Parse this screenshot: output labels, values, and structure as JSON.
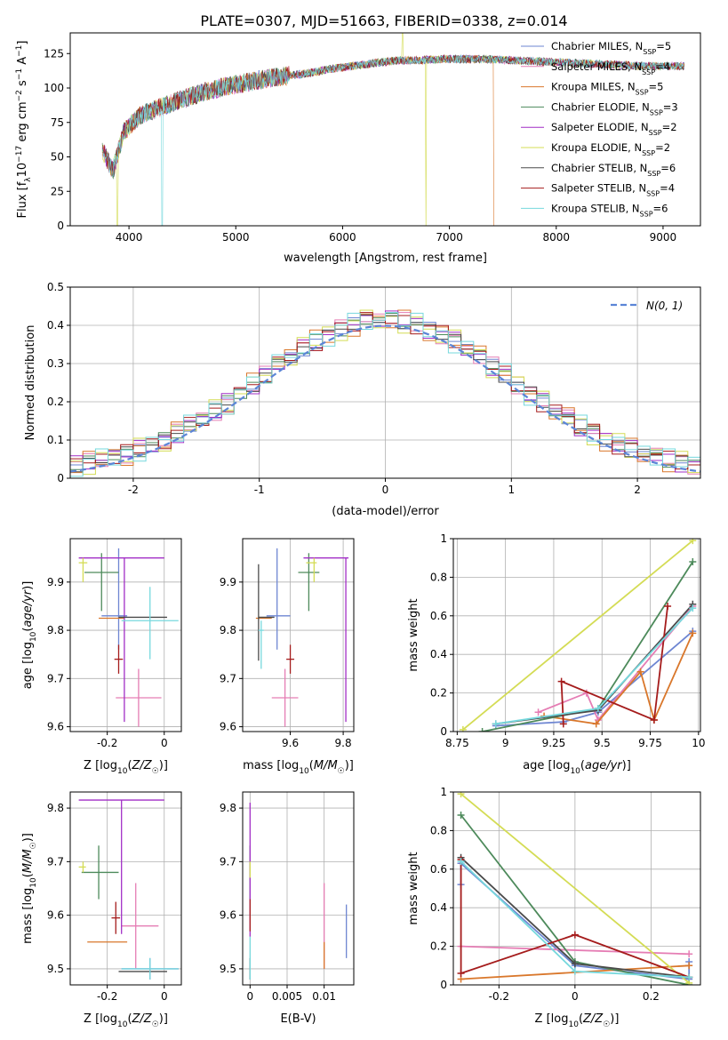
{
  "figure": {
    "title": "PLATE=0307, MJD=51663, FIBERID=0338, z=0.014"
  },
  "models": [
    {
      "name": "Chabrier MILES, N$_{SSP}$=5",
      "label_main": "Chabrier MILES, N",
      "label_sub": "SSP",
      "label_end": "=5",
      "color": "#6e86d2"
    },
    {
      "name": "Salpeter MILES, N$_{SSP}$=4",
      "label_main": "Salpeter MILES, N",
      "label_sub": "SSP",
      "label_end": "=4",
      "color": "#e57db4"
    },
    {
      "name": "Kroupa MILES, N$_{SSP}$=5",
      "label_main": "Kroupa MILES, N",
      "label_sub": "SSP",
      "label_end": "=5",
      "color": "#d9772b"
    },
    {
      "name": "Chabrier ELODIE, N$_{SSP}$=3",
      "label_main": "Chabrier ELODIE, N",
      "label_sub": "SSP",
      "label_end": "=3",
      "color": "#4d8a5b"
    },
    {
      "name": "Salpeter ELODIE, N$_{SSP}$=2",
      "label_main": "Salpeter ELODIE, N",
      "label_sub": "SSP",
      "label_end": "=2",
      "color": "#a22fc6"
    },
    {
      "name": "Kroupa ELODIE, N$_{SSP}$=2",
      "label_main": "Kroupa ELODIE, N",
      "label_sub": "SSP",
      "label_end": "=2",
      "color": "#d4dc55"
    },
    {
      "name": "Chabrier STELIB, N$_{SSP}$=6",
      "label_main": "Chabrier STELIB, N",
      "label_sub": "SSP",
      "label_end": "=6",
      "color": "#4a4a4a"
    },
    {
      "name": "Salpeter STELIB, N$_{SSP}$=4",
      "label_main": "Salpeter STELIB, N",
      "label_sub": "SSP",
      "label_end": "=4",
      "color": "#a51c1c"
    },
    {
      "name": "Kroupa STELIB, N$_{SSP}$=6",
      "label_main": "Kroupa STELIB, N",
      "label_sub": "SSP",
      "label_end": "=6",
      "color": "#76d8dd"
    }
  ],
  "chart_data": [
    {
      "id": "spectrum",
      "type": "line",
      "xlabel": "wavelength [Angstrom, rest frame]",
      "ylabel": "Flux [f_λ 10^-17 erg cm^-2 s^-1 A^-1]",
      "xlim": [
        3450,
        9350
      ],
      "ylim": [
        0,
        140
      ],
      "xticks": [
        4000,
        5000,
        6000,
        7000,
        8000,
        9000
      ],
      "yticks": [
        0,
        25,
        50,
        75,
        100,
        125
      ],
      "grid": false,
      "legend": "right",
      "x_range": [
        3750,
        9200
      ],
      "continuum": [
        [
          3750,
          55
        ],
        [
          3850,
          40
        ],
        [
          3950,
          68
        ],
        [
          4100,
          80
        ],
        [
          4300,
          86
        ],
        [
          4500,
          92
        ],
        [
          4700,
          97
        ],
        [
          4900,
          101
        ],
        [
          5100,
          104
        ],
        [
          5300,
          107
        ],
        [
          5500,
          109
        ],
        [
          5700,
          111
        ],
        [
          5900,
          114
        ],
        [
          6100,
          116
        ],
        [
          6300,
          118
        ],
        [
          6500,
          120
        ],
        [
          6700,
          120
        ],
        [
          6900,
          121
        ],
        [
          7100,
          121
        ],
        [
          7300,
          121
        ],
        [
          7600,
          120
        ],
        [
          7900,
          119
        ],
        [
          8200,
          118
        ],
        [
          8500,
          117
        ],
        [
          8800,
          116
        ],
        [
          9000,
          116
        ],
        [
          9200,
          116
        ]
      ],
      "dropouts": [
        {
          "model": 5,
          "wavelength": 3890
        },
        {
          "model": 8,
          "wavelength": 4310
        },
        {
          "model": 5,
          "wavelength": 6780
        },
        {
          "model": 2,
          "wavelength": 7420
        }
      ],
      "spikes": [
        {
          "model": 5,
          "wavelength": 6560,
          "flux": 140
        }
      ]
    },
    {
      "id": "residuals",
      "type": "histogram",
      "xlabel": "(data-model)/error",
      "ylabel": "Normed distribution",
      "xlim": [
        -2.5,
        2.5
      ],
      "ylim": [
        0,
        0.5
      ],
      "xticks": [
        -2,
        -1,
        0,
        1,
        2
      ],
      "yticks": [
        0,
        0.1,
        0.2,
        0.3,
        0.4,
        0.5
      ],
      "grid": true,
      "legend": "top-right",
      "reference_label": "N(0,1)",
      "bin_width": 0.1,
      "jitter": [
        0.0,
        0.02,
        -0.02,
        0.03,
        -0.01,
        0.02,
        -0.03,
        0.01,
        0.03,
        -0.02,
        0.01,
        -0.03,
        0.02,
        0.0,
        -0.02,
        0.03,
        -0.01,
        0.02,
        -0.03,
        0.01,
        0.02,
        -0.02,
        0.03,
        0.0,
        -0.01,
        0.02,
        -0.03,
        0.01,
        0.03,
        -0.02,
        0.0,
        0.02,
        -0.01,
        0.03,
        -0.02,
        0.01,
        -0.03,
        0.02,
        0.01,
        -0.02,
        0.03,
        0.0,
        -0.03,
        0.02,
        -0.01,
        0.01,
        0.03,
        -0.02,
        0.0,
        0.02
      ]
    },
    {
      "id": "age-vs-Z",
      "type": "errorbar",
      "xlabel": "Z [log10(Z/Z☉)]",
      "ylabel": "age  [log10(age/yr)]",
      "xlim": [
        -0.33,
        0.06
      ],
      "ylim": [
        9.59,
        9.99
      ],
      "xticks": [
        -0.2,
        0.0
      ],
      "yticks": [
        9.6,
        9.7,
        9.8,
        9.9
      ],
      "grid": true,
      "points": [
        {
          "model": 0,
          "x": -0.16,
          "xerr": [
            0.06,
            0.03
          ],
          "y": 9.83,
          "yerr": [
            0.07,
            0.14
          ]
        },
        {
          "model": 1,
          "x": -0.09,
          "xerr": [
            0.08,
            0.08
          ],
          "y": 9.66,
          "yerr": [
            0.06,
            0.06
          ]
        },
        {
          "model": 2,
          "x": -0.17,
          "xerr": [
            0.06,
            0.03
          ],
          "y": 9.825,
          "yerr": [
            0.0,
            0.0
          ]
        },
        {
          "model": 3,
          "x": -0.22,
          "xerr": [
            0.06,
            0.06
          ],
          "y": 9.92,
          "yerr": [
            0.08,
            0.04
          ]
        },
        {
          "model": 4,
          "x": -0.14,
          "xerr": [
            0.16,
            0.14
          ],
          "y": 9.95,
          "yerr": [
            0.34,
            0.0
          ]
        },
        {
          "model": 5,
          "x": -0.285,
          "xerr": [
            0.015,
            0.015
          ],
          "y": 9.94,
          "yerr": [
            0.04,
            0.01
          ]
        },
        {
          "model": 6,
          "x": -0.06,
          "xerr": [
            0.1,
            0.07
          ],
          "y": 9.827,
          "yerr": [
            0.0,
            0.0
          ]
        },
        {
          "model": 7,
          "x": -0.16,
          "xerr": [
            0.015,
            0.015
          ],
          "y": 9.74,
          "yerr": [
            0.03,
            0.03
          ]
        },
        {
          "model": 8,
          "x": -0.05,
          "xerr": [
            0.1,
            0.1
          ],
          "y": 9.82,
          "yerr": [
            0.08,
            0.07
          ]
        }
      ]
    },
    {
      "id": "age-vs-mass",
      "type": "errorbar",
      "xlabel": "mass [log10(M/M☉)]",
      "ylabel": "",
      "xlim": [
        9.42,
        9.84
      ],
      "ylim": [
        9.59,
        9.99
      ],
      "xticks": [
        9.6,
        9.8
      ],
      "yticks": [
        9.6,
        9.7,
        9.8,
        9.9
      ],
      "grid": true,
      "points": [
        {
          "model": 0,
          "x": 9.55,
          "xerr": [
            0.04,
            0.05
          ],
          "y": 9.83,
          "yerr": [
            0.07,
            0.14
          ]
        },
        {
          "model": 1,
          "x": 9.58,
          "xerr": [
            0.05,
            0.05
          ],
          "y": 9.66,
          "yerr": [
            0.06,
            0.06
          ]
        },
        {
          "model": 2,
          "x": 9.5,
          "xerr": [
            0.03,
            0.03
          ],
          "y": 9.825,
          "yerr": [
            0.0,
            0.0
          ]
        },
        {
          "model": 3,
          "x": 9.67,
          "xerr": [
            0.04,
            0.04
          ],
          "y": 9.92,
          "yerr": [
            0.08,
            0.04
          ]
        },
        {
          "model": 4,
          "x": 9.81,
          "xerr": [
            0.16,
            0.01
          ],
          "y": 9.95,
          "yerr": [
            0.34,
            0.0
          ]
        },
        {
          "model": 5,
          "x": 9.69,
          "xerr": [
            0.03,
            0.01
          ],
          "y": 9.94,
          "yerr": [
            0.04,
            0.01
          ]
        },
        {
          "model": 6,
          "x": 9.48,
          "xerr": [
            0.0,
            0.06
          ],
          "y": 9.827,
          "yerr": [
            0.09,
            0.11
          ]
        },
        {
          "model": 7,
          "x": 9.6,
          "xerr": [
            0.015,
            0.015
          ],
          "y": 9.74,
          "yerr": [
            0.03,
            0.03
          ]
        },
        {
          "model": 8,
          "x": 9.49,
          "xerr": [
            0.01,
            0.01
          ],
          "y": 9.8,
          "yerr": [
            0.08,
            0.02
          ]
        }
      ]
    },
    {
      "id": "weight-vs-age",
      "type": "line",
      "xlabel": "age  [log10(age/yr)]",
      "ylabel": "mass weight",
      "xlim": [
        8.73,
        10.01
      ],
      "ylim": [
        0,
        1
      ],
      "xticks": [
        8.75,
        9.0,
        9.25,
        9.5,
        9.75,
        10.0
      ],
      "yticks": [
        0,
        0.2,
        0.4,
        0.6,
        0.8,
        1.0
      ],
      "grid": true,
      "series": [
        {
          "model": 0,
          "x": [
            8.95,
            9.3,
            9.48,
            9.97
          ],
          "y": [
            0.03,
            0.05,
            0.1,
            0.52
          ]
        },
        {
          "model": 1,
          "x": [
            9.17,
            9.42,
            9.48,
            9.97
          ],
          "y": [
            0.1,
            0.2,
            0.06,
            0.65
          ]
        },
        {
          "model": 2,
          "x": [
            9.2,
            9.47,
            9.7,
            9.77,
            9.97
          ],
          "y": [
            0.08,
            0.04,
            0.31,
            0.06,
            0.51
          ]
        },
        {
          "model": 3,
          "x": [
            8.88,
            9.48,
            9.97
          ],
          "y": [
            0.0,
            0.12,
            0.88
          ]
        },
        {
          "model": 5,
          "x": [
            8.78,
            9.97
          ],
          "y": [
            0.01,
            0.99
          ]
        },
        {
          "model": 6,
          "x": [
            8.95,
            9.48,
            9.97
          ],
          "y": [
            0.04,
            0.11,
            0.66
          ]
        },
        {
          "model": 7,
          "x": [
            9.3,
            9.29,
            9.77,
            9.84
          ],
          "y": [
            0.04,
            0.26,
            0.06,
            0.65
          ]
        },
        {
          "model": 8,
          "x": [
            8.95,
            9.48,
            9.97
          ],
          "y": [
            0.04,
            0.12,
            0.64
          ]
        }
      ]
    },
    {
      "id": "mass-vs-Z",
      "type": "errorbar",
      "xlabel": "Z [log10(Z/Z☉)]",
      "ylabel": "mass [log10(M/M☉)]",
      "xlim": [
        -0.33,
        0.06
      ],
      "ylim": [
        9.47,
        9.83
      ],
      "xticks": [
        -0.2,
        0.0
      ],
      "yticks": [
        9.5,
        9.6,
        9.7,
        9.8
      ],
      "grid": true,
      "points": [
        {
          "model": 0,
          "x": -0.05,
          "xerr": [
            0.1,
            0.1
          ],
          "y": 9.5,
          "yerr": [
            0.02,
            0.02
          ]
        },
        {
          "model": 1,
          "x": -0.1,
          "xerr": [
            0.05,
            0.08
          ],
          "y": 9.58,
          "yerr": [
            0.08,
            0.08
          ]
        },
        {
          "model": 2,
          "x": -0.2,
          "xerr": [
            0.07,
            0.07
          ],
          "y": 9.55,
          "yerr": [
            0.0,
            0.0
          ]
        },
        {
          "model": 3,
          "x": -0.23,
          "xerr": [
            0.06,
            0.07
          ],
          "y": 9.68,
          "yerr": [
            0.05,
            0.05
          ]
        },
        {
          "model": 4,
          "x": -0.15,
          "xerr": [
            0.15,
            0.15
          ],
          "y": 9.815,
          "yerr": [
            0.25,
            0.0
          ]
        },
        {
          "model": 5,
          "x": -0.285,
          "xerr": [
            0.015,
            0.01
          ],
          "y": 9.69,
          "yerr": [
            0.01,
            0.01
          ]
        },
        {
          "model": 6,
          "x": -0.06,
          "xerr": [
            0.1,
            0.07
          ],
          "y": 9.495,
          "yerr": [
            0.0,
            0.0
          ]
        },
        {
          "model": 7,
          "x": -0.17,
          "xerr": [
            0.015,
            0.015
          ],
          "y": 9.595,
          "yerr": [
            0.03,
            0.03
          ]
        },
        {
          "model": 8,
          "x": -0.05,
          "xerr": [
            0.1,
            0.1
          ],
          "y": 9.5,
          "yerr": [
            0.02,
            0.02
          ]
        }
      ]
    },
    {
      "id": "mass-vs-EBV",
      "type": "errorbar",
      "xlabel": "E(B-V)",
      "ylabel": "",
      "xlim": [
        -0.001,
        0.014
      ],
      "ylim": [
        9.47,
        9.83
      ],
      "xticks": [
        0.0,
        0.005,
        0.01
      ],
      "yticks": [
        9.5,
        9.6,
        9.7,
        9.8
      ],
      "grid": true,
      "points": [
        {
          "model": 0,
          "x": 0.013,
          "xerr": [
            0,
            0
          ],
          "y": 9.57,
          "yerr": [
            0.05,
            0.05
          ]
        },
        {
          "model": 1,
          "x": 0.01,
          "xerr": [
            0,
            0
          ],
          "y": 9.58,
          "yerr": [
            0.08,
            0.08
          ]
        },
        {
          "model": 2,
          "x": 0.01,
          "xerr": [
            0,
            0
          ],
          "y": 9.55,
          "yerr": [
            0.05,
            0.0
          ]
        },
        {
          "model": 3,
          "x": 0.0,
          "xerr": [
            0,
            0
          ],
          "y": 9.68,
          "yerr": [
            0.05,
            0.05
          ]
        },
        {
          "model": 4,
          "x": 0.0,
          "xerr": [
            0,
            0
          ],
          "y": 9.7,
          "yerr": [
            0.14,
            0.11
          ]
        },
        {
          "model": 5,
          "x": 0.0,
          "xerr": [
            0,
            0
          ],
          "y": 9.69,
          "yerr": [
            0.02,
            0.01
          ]
        },
        {
          "model": 6,
          "x": 0.0,
          "xerr": [
            0,
            0
          ],
          "y": 9.5,
          "yerr": [
            0.02,
            0.02
          ]
        },
        {
          "model": 7,
          "x": 0.0,
          "xerr": [
            0,
            0
          ],
          "y": 9.6,
          "yerr": [
            0.03,
            0.03
          ]
        },
        {
          "model": 8,
          "x": 0.0,
          "xerr": [
            0,
            0
          ],
          "y": 9.52,
          "yerr": [
            0.04,
            0.04
          ]
        }
      ]
    },
    {
      "id": "weight-vs-Z",
      "type": "line",
      "xlabel": "Z [log10(Z/Z☉)]",
      "ylabel": "mass weight",
      "xlim": [
        -0.32,
        0.33
      ],
      "ylim": [
        0,
        1
      ],
      "xticks": [
        -0.2,
        0.0,
        0.2
      ],
      "yticks": [
        0,
        0.2,
        0.4,
        0.6,
        0.8,
        1.0
      ],
      "grid": true,
      "series": [
        {
          "model": 0,
          "x": [
            -0.3,
            -0.3,
            0.0,
            0.3,
            0.3
          ],
          "y": [
            0.52,
            0.63,
            0.1,
            0.03,
            0.12
          ]
        },
        {
          "model": 1,
          "x": [
            -0.3,
            0.3
          ],
          "y": [
            0.2,
            0.16
          ]
        },
        {
          "model": 2,
          "x": [
            -0.3,
            0.3
          ],
          "y": [
            0.03,
            0.1
          ]
        },
        {
          "model": 3,
          "x": [
            -0.3,
            0.0,
            0.3
          ],
          "y": [
            0.88,
            0.12,
            0.0
          ]
        },
        {
          "model": 5,
          "x": [
            -0.3,
            0.3
          ],
          "y": [
            0.99,
            0.01
          ]
        },
        {
          "model": 6,
          "x": [
            -0.3,
            0.0,
            0.3
          ],
          "y": [
            0.66,
            0.11,
            0.04
          ]
        },
        {
          "model": 7,
          "x": [
            -0.3,
            -0.3,
            0.0,
            0.3
          ],
          "y": [
            0.65,
            0.06,
            0.26,
            0.04
          ]
        },
        {
          "model": 8,
          "x": [
            -0.3,
            0.0,
            0.3
          ],
          "y": [
            0.64,
            0.07,
            0.04
          ]
        }
      ]
    }
  ]
}
